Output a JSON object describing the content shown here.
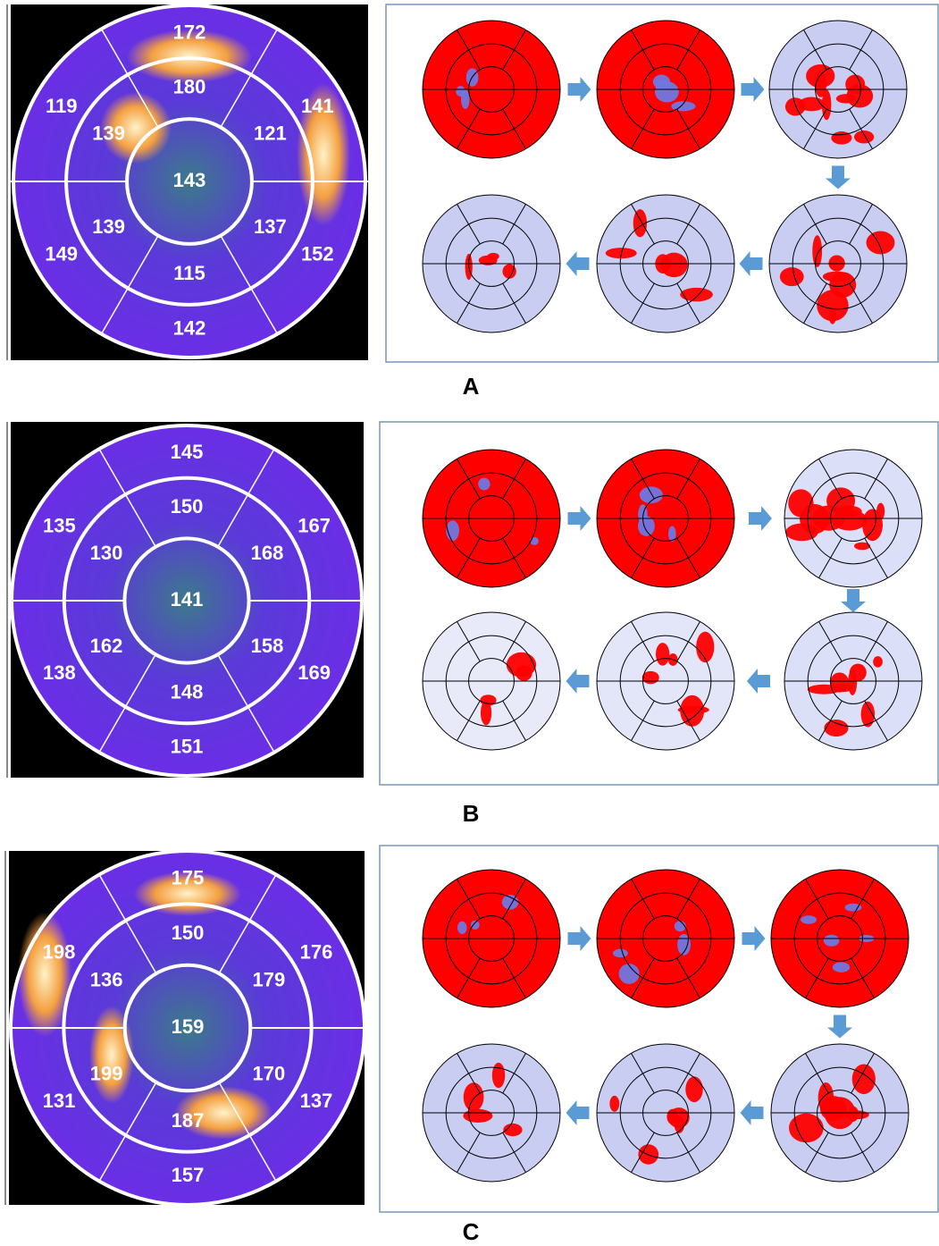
{
  "panels": [
    {
      "label": "A",
      "outer": [
        172,
        119,
        141,
        149,
        152,
        142
      ],
      "middle": [
        180,
        139,
        121,
        139,
        137,
        115
      ],
      "center": 143
    },
    {
      "label": "B",
      "outer": [
        145,
        135,
        167,
        138,
        169,
        151
      ],
      "middle": [
        150,
        130,
        168,
        162,
        158,
        148
      ],
      "center": 141
    },
    {
      "label": "C",
      "outer": [
        175,
        198,
        176,
        131,
        137,
        157
      ],
      "middle": [
        150,
        136,
        179,
        199,
        170,
        187
      ],
      "center": 159
    }
  ]
}
